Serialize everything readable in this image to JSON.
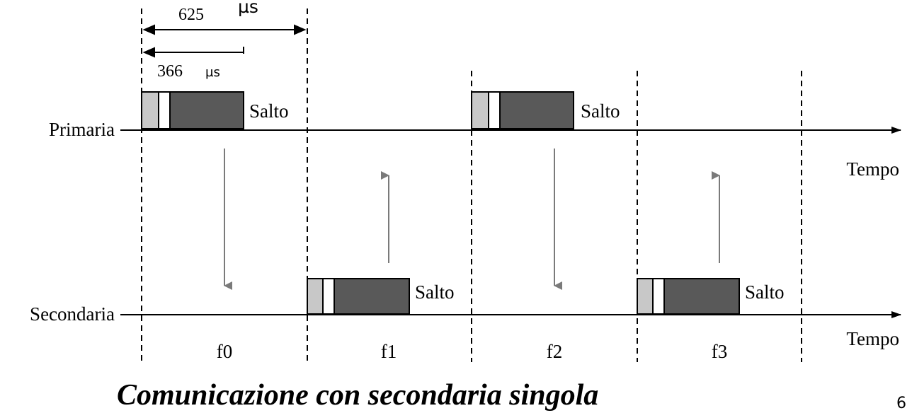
{
  "dimension": {
    "slot_value": "625",
    "slot_unit": "µs",
    "packet_value": "366",
    "packet_unit": "µs"
  },
  "lines": {
    "primary_label": "Primaria",
    "secondary_label": "Secondaria",
    "time_label": "Tempo"
  },
  "packets": [
    {
      "label": "Salto"
    },
    {
      "label": "Salto"
    },
    {
      "label": "Salto"
    },
    {
      "label": "Salto"
    }
  ],
  "frequencies": [
    "f0",
    "f1",
    "f2",
    "f3"
  ],
  "caption": "Comunicazione con secondaria singola",
  "page_number": "6",
  "colors": {
    "header_light": "#c8c8c8",
    "payload_dark": "#595959",
    "arrow_gray": "#7a7a7a",
    "line": "#000000"
  }
}
